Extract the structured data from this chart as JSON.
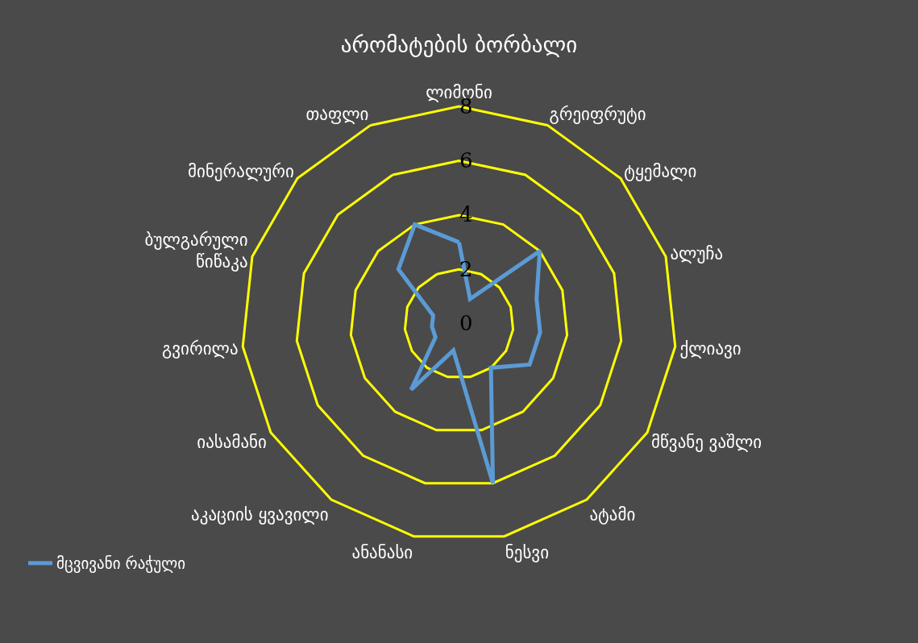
{
  "chart_data": {
    "type": "radar",
    "title": "არომატების ბორბალი",
    "categories": [
      "ლიმონი",
      "გრეიფრუტი",
      "ტყემალი",
      "ალუჩა",
      "ქლიავი",
      "მწვანე ვაშლი",
      "ატამი",
      "ნესვი",
      "ანანასი",
      "აკაციის ყვავილი",
      "იასამანი",
      "გვირილა",
      "ბულგარული\nწიწაკა",
      "მინერალური",
      "თაფლი"
    ],
    "series": [
      {
        "name": "მცვივანი რაჭული",
        "color": "#5b9bd5",
        "values": [
          3,
          1,
          4,
          3,
          3,
          3,
          2,
          6,
          1,
          3,
          1,
          1,
          1,
          3,
          4
        ]
      }
    ],
    "ylim": [
      0,
      8
    ],
    "yticks": [
      0,
      2,
      4,
      6,
      8
    ],
    "grid": true,
    "legend": "bottom left",
    "marker": "none"
  }
}
